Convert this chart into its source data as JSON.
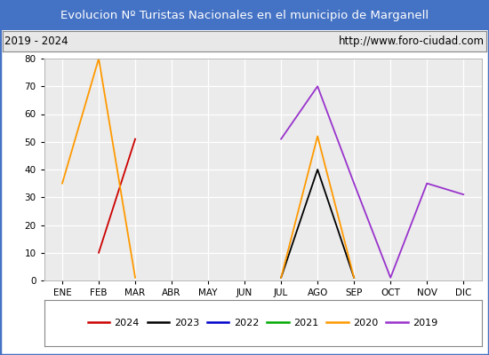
{
  "title": "Evolucion Nº Turistas Nacionales en el municipio de Marganell",
  "subtitle_left": "2019 - 2024",
  "subtitle_right": "http://www.foro-ciudad.com",
  "title_bg_color": "#4472c4",
  "title_text_color": "#ffffff",
  "subtitle_bg_color": "#e8e8e8",
  "subtitle_text_color": "#000000",
  "plot_bg_color": "#ebebeb",
  "grid_color": "#ffffff",
  "months": [
    "ENE",
    "FEB",
    "MAR",
    "ABR",
    "MAY",
    "JUN",
    "JUL",
    "AGO",
    "SEP",
    "OCT",
    "NOV",
    "DIC"
  ],
  "series": {
    "2024": {
      "color": "#cc0000",
      "data": [
        null,
        10,
        51,
        null,
        null,
        null,
        null,
        null,
        null,
        null,
        null,
        null
      ]
    },
    "2023": {
      "color": "#000000",
      "data": [
        null,
        null,
        null,
        null,
        null,
        null,
        1,
        40,
        1,
        null,
        null,
        null
      ]
    },
    "2022": {
      "color": "#0000cc",
      "data": [
        null,
        null,
        null,
        null,
        null,
        null,
        null,
        null,
        null,
        null,
        null,
        null
      ]
    },
    "2021": {
      "color": "#00aa00",
      "data": [
        null,
        null,
        null,
        null,
        null,
        null,
        null,
        null,
        null,
        null,
        null,
        null
      ]
    },
    "2020": {
      "color": "#ff9900",
      "data": [
        35,
        80,
        1,
        null,
        null,
        null,
        1,
        52,
        1,
        null,
        null,
        null
      ]
    },
    "2019": {
      "color": "#9933cc",
      "data": [
        null,
        null,
        null,
        null,
        null,
        null,
        51,
        70,
        35,
        1,
        35,
        31
      ]
    }
  },
  "ylim": [
    0,
    80
  ],
  "yticks": [
    0,
    10,
    20,
    30,
    40,
    50,
    60,
    70,
    80
  ],
  "legend_order": [
    "2024",
    "2023",
    "2022",
    "2021",
    "2020",
    "2019"
  ],
  "border_color": "#4472c4",
  "outer_border_color": "#4472c4"
}
